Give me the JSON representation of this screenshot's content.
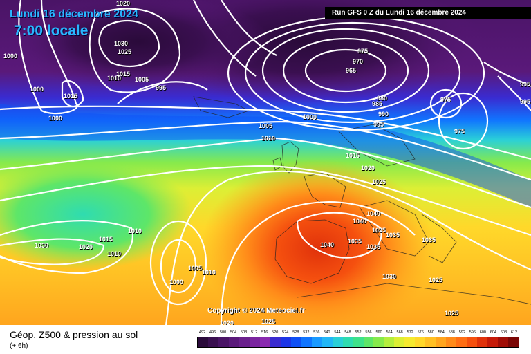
{
  "header": {
    "date": "Lundi 16 décembre 2024",
    "time": "7:00 locale",
    "run": "Run GFS 0 Z du Lundi 16 décembre 2024"
  },
  "copyright": "Copyright © 2024 Meteociel.fr",
  "footer": {
    "title": "Géop. Z500 & pression au sol",
    "subtitle": "(+ 6h)"
  },
  "isobar_labels": [
    "1000",
    "1030",
    "1025",
    "1020",
    "1015",
    "1015",
    "1010",
    "1005",
    "995",
    "1000",
    "1000",
    "975",
    "970",
    "965",
    "980",
    "985",
    "990",
    "995",
    "975",
    "975",
    "995",
    "995",
    "1000",
    "1005",
    "1010",
    "1015",
    "1020",
    "1025",
    "1040",
    "1040",
    "1035",
    "1035",
    "1035",
    "1035",
    "1040",
    "1035",
    "1030",
    "1030",
    "1025",
    "1025",
    "1020",
    "1015",
    "1010",
    "1010",
    "1000",
    "1005",
    "1010",
    "1020",
    "1025"
  ],
  "legend": {
    "ticks": [
      "492",
      "496",
      "500",
      "504",
      "508",
      "512",
      "516",
      "520",
      "524",
      "528",
      "532",
      "536",
      "540",
      "544",
      "548",
      "552",
      "556",
      "560",
      "564",
      "568",
      "572",
      "576",
      "580",
      "584",
      "588",
      "592",
      "596",
      "600",
      "604",
      "608",
      "612"
    ],
    "colors": [
      "#2a0a3a",
      "#3a0f50",
      "#4a1466",
      "#5a197a",
      "#6a1f8c",
      "#7a249f",
      "#8a2ab0",
      "#3a2bd0",
      "#1c35e6",
      "#0f50f5",
      "#1075ff",
      "#1a9aff",
      "#22b7f7",
      "#2ad0d8",
      "#2fdcb0",
      "#3ee28a",
      "#5ee668",
      "#86ea4c",
      "#b4ee3e",
      "#dcef35",
      "#f5ea2f",
      "#ffd82a",
      "#ffc024",
      "#ffa51e",
      "#ff8a19",
      "#ff6e14",
      "#f5500f",
      "#e0320b",
      "#c51a08",
      "#a00d06",
      "#7a0605"
    ]
  },
  "colors": {
    "date_text": "#29b6ff",
    "isobar": "#ffffff",
    "run_bg": "#000000"
  }
}
